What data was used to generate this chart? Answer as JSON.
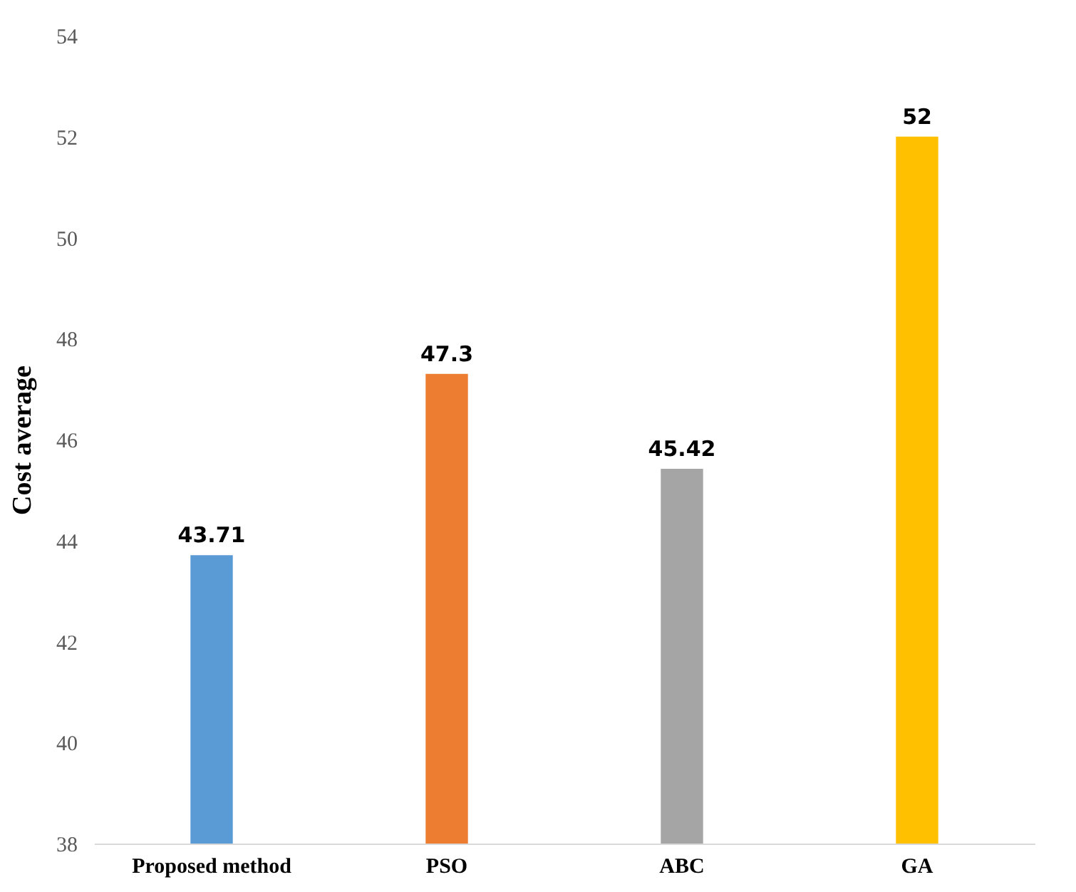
{
  "chart_data": {
    "type": "bar",
    "ylabel": "Cost average",
    "categories": [
      "Proposed method",
      "PSO",
      "ABC",
      "GA"
    ],
    "values": [
      43.71,
      47.3,
      45.42,
      52
    ],
    "colors": [
      "#5b9bd5",
      "#ed7d31",
      "#a5a5a5",
      "#ffc000"
    ],
    "ylim": [
      38,
      54
    ],
    "yticks": [
      38,
      40,
      42,
      44,
      46,
      48,
      50,
      52,
      54
    ],
    "data_labels": true
  }
}
